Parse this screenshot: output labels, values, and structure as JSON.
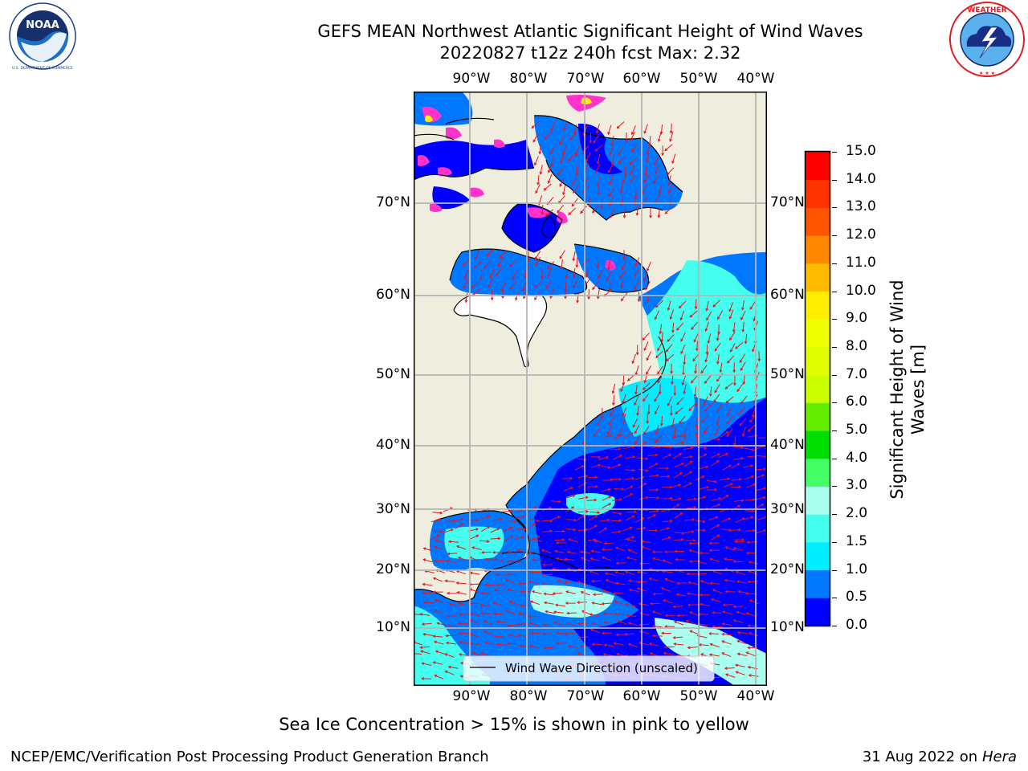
{
  "header": {
    "title_line1": "GEFS MEAN Northwest Atlantic Significant Height of Wind Waves",
    "title_line2": "20220827 t12z 240h fcst   Max: 2.32"
  },
  "logos": {
    "left": {
      "name": "NOAA",
      "ring_text": "NATIONAL OCEANIC AND ATMOSPHERIC ADMINISTRATION · U.S. DEPARTMENT OF COMMERCE"
    },
    "right": {
      "name": "NATIONAL WEATHER SERVICE"
    }
  },
  "map": {
    "lon_labels": [
      "90°W",
      "80°W",
      "70°W",
      "60°W",
      "50°W",
      "40°W"
    ],
    "lat_labels": [
      "70°N",
      "60°N",
      "50°N",
      "40°N",
      "30°N",
      "20°N",
      "10°N"
    ],
    "legend": "Wind Wave Direction (unscaled)",
    "colors": {
      "land": "#efedde",
      "grid": "#b4b4b4",
      "arrow": "#e8141e",
      "sea_ice": "#ff33cc",
      "coast": "#000000"
    }
  },
  "colorbar": {
    "label": "Significant Height of Wind Waves [m]",
    "ticks": [
      "15.0",
      "14.0",
      "13.0",
      "12.0",
      "11.0",
      "10.0",
      "9.0",
      "8.0",
      "7.0",
      "6.0",
      "5.0",
      "4.0",
      "3.0",
      "2.0",
      "1.5",
      "1.0",
      "0.5",
      "0.0"
    ],
    "bins": [
      {
        "from": 0.0,
        "to": 0.5,
        "color": "#0000ff"
      },
      {
        "from": 0.5,
        "to": 1.0,
        "color": "#0077ff"
      },
      {
        "from": 1.0,
        "to": 1.5,
        "color": "#00eeff"
      },
      {
        "from": 1.5,
        "to": 2.0,
        "color": "#44ffee"
      },
      {
        "from": 2.0,
        "to": 3.0,
        "color": "#aaffee"
      },
      {
        "from": 3.0,
        "to": 4.0,
        "color": "#44ff66"
      },
      {
        "from": 4.0,
        "to": 5.0,
        "color": "#00dd00"
      },
      {
        "from": 5.0,
        "to": 6.0,
        "color": "#66ee00"
      },
      {
        "from": 6.0,
        "to": 7.0,
        "color": "#ccff00"
      },
      {
        "from": 7.0,
        "to": 8.0,
        "color": "#dfff00"
      },
      {
        "from": 8.0,
        "to": 9.0,
        "color": "#eeff00"
      },
      {
        "from": 9.0,
        "to": 10.0,
        "color": "#ffee00"
      },
      {
        "from": 10.0,
        "to": 11.0,
        "color": "#ffbb00"
      },
      {
        "from": 11.0,
        "to": 12.0,
        "color": "#ff8800"
      },
      {
        "from": 12.0,
        "to": 13.0,
        "color": "#ff5500"
      },
      {
        "from": 13.0,
        "to": 14.0,
        "color": "#ff3300"
      },
      {
        "from": 14.0,
        "to": 15.0,
        "color": "#ff0000"
      }
    ]
  },
  "note": "Sea Ice Concentration > 15% is shown in pink to yellow",
  "footer": {
    "left": "NCEP/EMC/Verification Post Processing Product Generation Branch",
    "right_date": "31 Aug 2022 on",
    "right_host": "Hera"
  }
}
